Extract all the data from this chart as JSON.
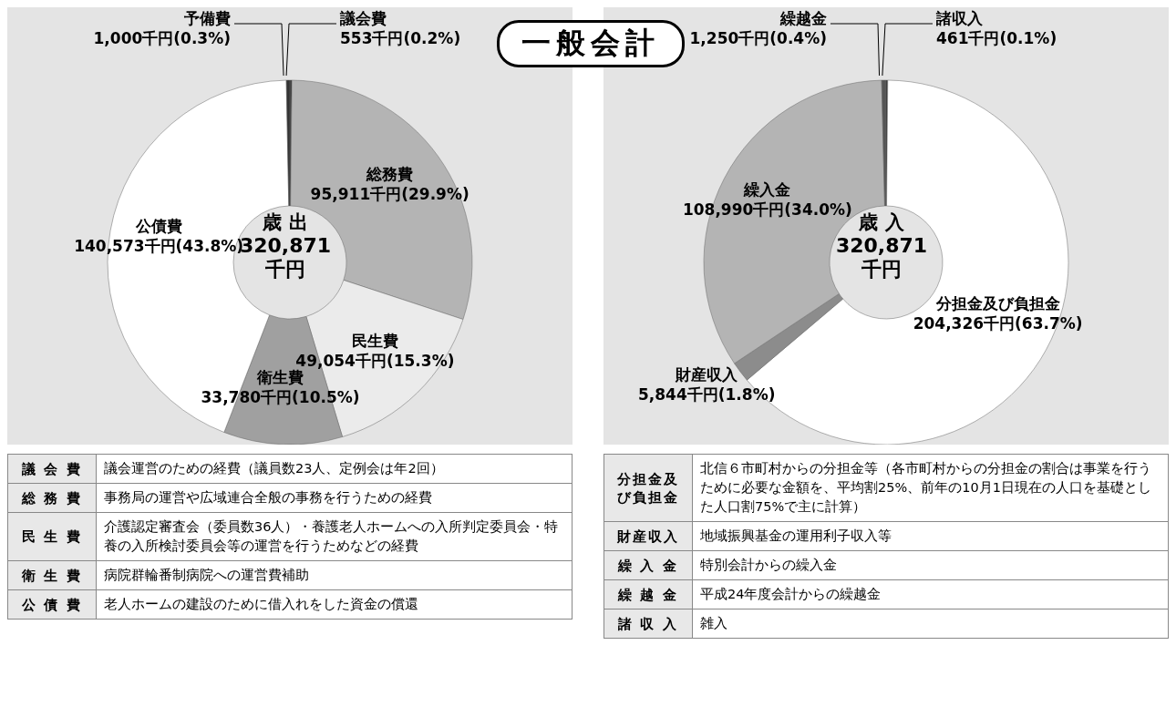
{
  "chart_data": [
    {
      "type": "donut",
      "title": "歳 出",
      "subtitle": "320,871千円",
      "categories": [
        "議会費",
        "総務費",
        "民生費",
        "衛生費",
        "公債費",
        "予備費"
      ],
      "values": [
        553,
        95911,
        49054,
        33780,
        140573,
        1000
      ],
      "colors": [
        "#333333",
        "#b4b4b4",
        "#ebebeb",
        "#a0a0a0",
        "#ffffff",
        "#333333"
      ],
      "value_labels": [
        "553千円(0.2%)",
        "95,911千円(29.9%)",
        "49,054千円(15.3%)",
        "33,780千円(10.5%)",
        "140,573千円(43.8%)",
        "1,000千円(0.3%)"
      ],
      "annotations": [
        "一般会計",
        "議 会 費",
        "議会運営のための経費（議員数23人、定例会は年2回）",
        "総 務 費",
        "事務局の運営や広域連合全般の事務を行うための経費",
        "民 生 費",
        "介護認定審査会（委員数36人）・養護老人ホームへの入所判定委員会・特養の入所検討委員会等の運営を行うためなどの経費",
        "衛 生 費",
        "病院群輪番制病院への運営費補助",
        "公 債 費",
        "老人ホームの建設のために借入れをした資金の償還"
      ]
    },
    {
      "type": "donut",
      "title": "歳 入",
      "subtitle": "320,871千円",
      "categories": [
        "諸収入",
        "分担金及び負担金",
        "財産収入",
        "繰入金",
        "繰越金"
      ],
      "values": [
        461,
        204326,
        5844,
        108990,
        1250
      ],
      "colors": [
        "#222222",
        "#ffffff",
        "#8c8c8c",
        "#b4b4b4",
        "#555555"
      ],
      "value_labels": [
        "461千円(0.1%)",
        "204,326千円(63.7%)",
        "5,844千円(1.8%)",
        "108,990千円(34.0%)",
        "1,250千円(0.4%)"
      ],
      "annotations": [
        "分担金及び負担金",
        "北信６市町村からの分担金等（各市町村からの分担金の割合は事業を行うために必要な金額を、平均割25%、前年の10月1日現在の人口を基礎とした人口割75%で主に計算）",
        "財産収入",
        "地域振興基金の運用利子収入等",
        "繰 入 金",
        "特別会計からの繰入金",
        "繰 越 金",
        "平成24年度会計からの繰越金",
        "諸 収 入",
        "雑入"
      ]
    }
  ]
}
